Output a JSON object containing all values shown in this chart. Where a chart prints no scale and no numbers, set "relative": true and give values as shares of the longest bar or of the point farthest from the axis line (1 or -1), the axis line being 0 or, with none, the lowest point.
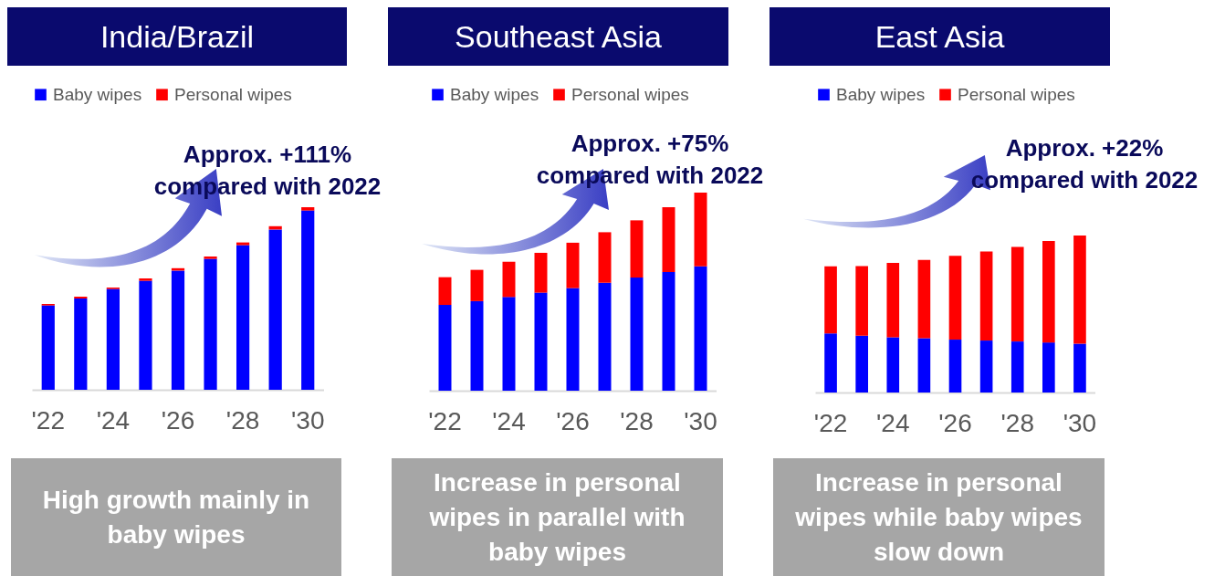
{
  "chart_data": [
    {
      "type": "bar",
      "title": "India/Brazil",
      "categories": [
        "'22",
        null,
        "'24",
        null,
        "'26",
        null,
        "'28",
        null,
        "'30"
      ],
      "stacked": true,
      "relative": true,
      "legend": "top left",
      "grid": false,
      "series": [
        {
          "name": "Baby wipes",
          "color": "#0000ff",
          "values": [
            0.462,
            0.5,
            0.552,
            0.597,
            0.653,
            0.717,
            0.792,
            0.878,
            0.982
          ]
        },
        {
          "name": "Personal wipes",
          "color": "#ff0000",
          "values": [
            0.008,
            0.01,
            0.008,
            0.013,
            0.013,
            0.013,
            0.015,
            0.018,
            0.018
          ]
        }
      ],
      "annotations": [
        "Approx. +111%\ncompared with 2022",
        "High growth mainly in baby wipes"
      ]
    },
    {
      "type": "bar",
      "title": "Southeast Asia",
      "categories": [
        "'22",
        null,
        "'24",
        null,
        "'26",
        null,
        "'28",
        null,
        "'30"
      ],
      "stacked": true,
      "relative": true,
      "legend": "top left",
      "grid": false,
      "series": [
        {
          "name": "Baby wipes",
          "color": "#0000ff",
          "values": [
            0.433,
            0.452,
            0.473,
            0.495,
            0.518,
            0.545,
            0.571,
            0.599,
            0.628
          ]
        },
        {
          "name": "Personal wipes",
          "color": "#ff0000",
          "values": [
            0.14,
            0.158,
            0.178,
            0.201,
            0.229,
            0.255,
            0.289,
            0.327,
            0.372
          ]
        }
      ],
      "annotations": [
        "Approx. +75%\ncompared with 2022",
        "Increase in personal wipes in parallel with baby wipes"
      ]
    },
    {
      "type": "bar",
      "title": "East Asia",
      "categories": [
        "'22",
        null,
        "'24",
        null,
        "'26",
        null,
        "'28",
        null,
        "'30"
      ],
      "stacked": true,
      "relative": true,
      "legend": "top left",
      "grid": false,
      "series": [
        {
          "name": "Baby wipes",
          "color": "#0000ff",
          "values": [
            0.377,
            0.362,
            0.352,
            0.346,
            0.337,
            0.331,
            0.325,
            0.319,
            0.311
          ]
        },
        {
          "name": "Personal wipes",
          "color": "#ff0000",
          "values": [
            0.427,
            0.443,
            0.474,
            0.499,
            0.534,
            0.567,
            0.603,
            0.646,
            0.689
          ]
        }
      ],
      "annotations": [
        "Approx. +22%\ncompared with 2022",
        "Increase in personal wipes while baby wipes slow down"
      ]
    }
  ]
}
